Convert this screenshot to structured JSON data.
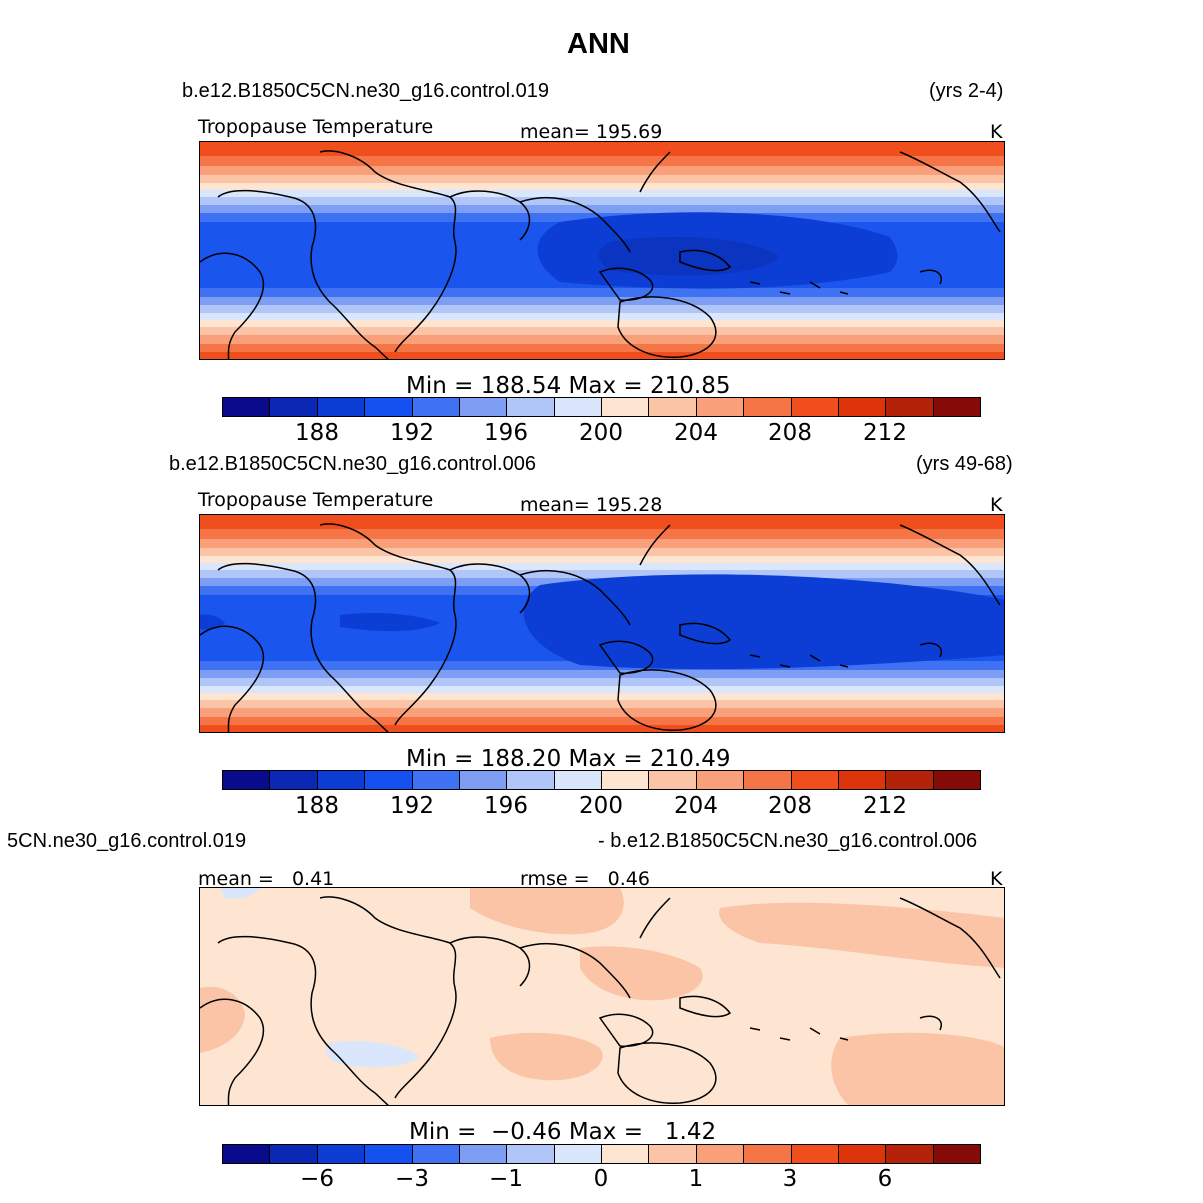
{
  "title": "ANN",
  "palette": [
    "#0a0a8c",
    "#0b28b4",
    "#0c3ed6",
    "#1550f0",
    "#3f72f2",
    "#7d9ef2",
    "#b0c6f8",
    "#d9e6fb",
    "#fde5d2",
    "#fbc4a6",
    "#f9a07a",
    "#f57547",
    "#f04e1c",
    "#dd340b",
    "#b5220a",
    "#840b08"
  ],
  "panels": [
    {
      "case_left": "b.e12.B1850C5CN.ne30_g16.control.019",
      "case_right": "(yrs 2-4)",
      "var_label": "Tropopause Temperature",
      "stat_label": "mean=",
      "stat_value": "195.69",
      "units": "K",
      "min_label": "Min",
      "min_value": "188.54",
      "max_label": "Max",
      "max_value": "210.85",
      "ticks": [
        "188",
        "192",
        "196",
        "200",
        "204",
        "208",
        "212"
      ]
    },
    {
      "case_left": "b.e12.B1850C5CN.ne30_g16.control.006",
      "case_right": "(yrs 49-68)",
      "var_label": "Tropopause Temperature",
      "stat_label": "mean=",
      "stat_value": "195.28",
      "units": "K",
      "min_label": "Min",
      "min_value": "188.20",
      "max_label": "Max",
      "max_value": "210.49",
      "ticks": [
        "188",
        "192",
        "196",
        "200",
        "204",
        "208",
        "212"
      ]
    },
    {
      "case_left": "5CN.ne30_g16.control.019",
      "case_right": "- b.e12.B1850C5CN.ne30_g16.control.006",
      "stat1_label": "mean =",
      "stat1_value": "0.41",
      "stat2_label": "rmse =",
      "stat2_value": "0.46",
      "units": "K",
      "min_label": "Min",
      "min_value": "−0.46",
      "max_label": "Max",
      "max_value": "1.42",
      "ticks": [
        "−6",
        "−3",
        "−1",
        "0",
        "1",
        "3",
        "6"
      ]
    }
  ]
}
